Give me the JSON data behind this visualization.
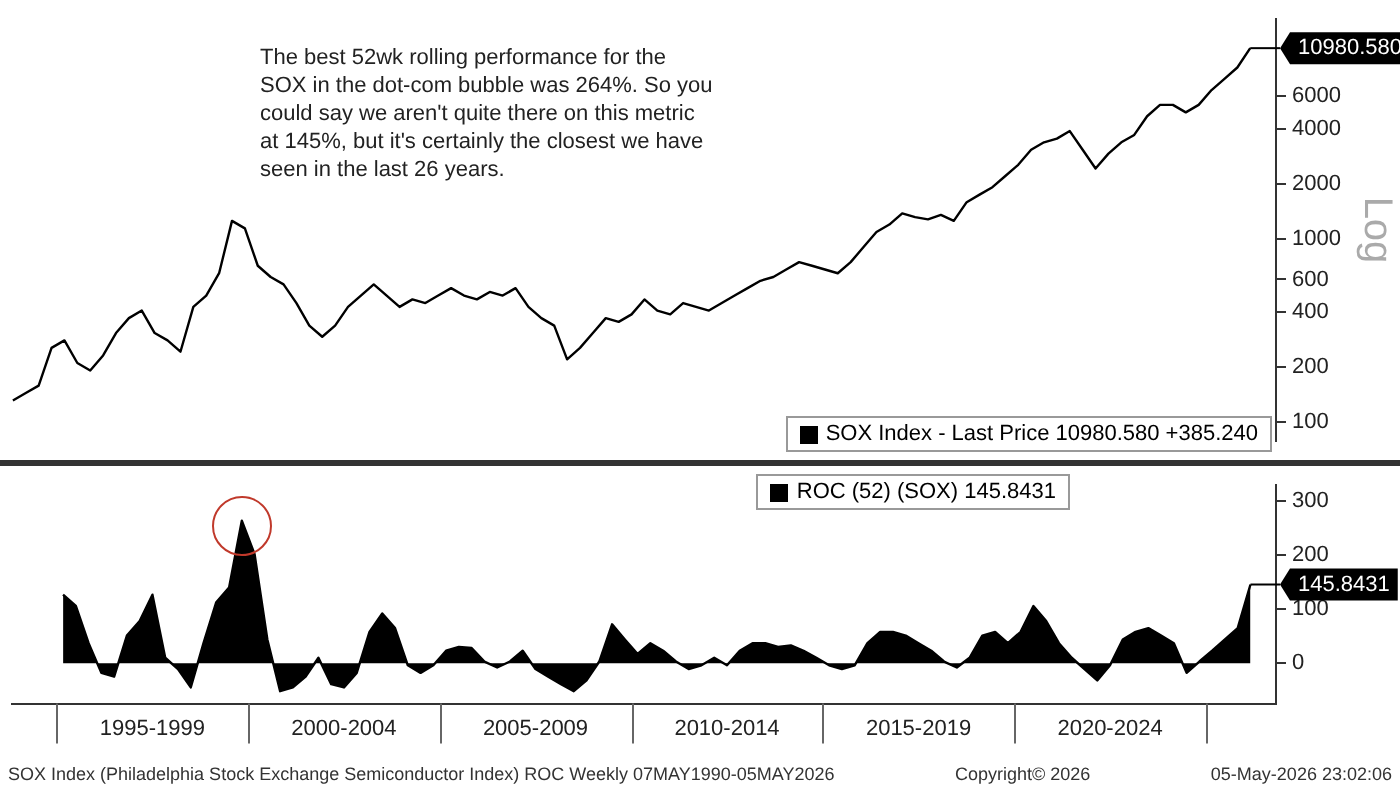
{
  "chart_data": [
    {
      "type": "line",
      "annotations": [
        "The best 52wk rolling performance for the SOX in the dot-com bubble was 264%. So you could say we aren't quite there on this metric at 145%, but it's certainly the closest we have seen in the last 26 years."
      ],
      "categories": [
        null,
        null,
        null,
        null,
        null,
        null,
        null,
        null,
        null,
        null,
        null,
        null,
        null,
        null,
        null,
        null,
        null,
        null,
        null,
        null,
        null,
        null,
        null,
        null,
        null,
        null,
        null,
        null,
        null,
        null,
        null,
        null,
        null,
        null,
        null,
        null,
        null,
        null,
        null,
        null,
        null,
        null,
        null,
        null,
        null,
        null,
        null,
        null,
        null,
        null,
        null,
        null,
        null,
        null,
        null,
        null,
        null,
        null,
        null,
        null,
        null,
        null,
        null,
        null,
        null,
        null,
        null,
        null,
        null,
        null,
        null,
        null,
        null,
        null,
        null,
        null,
        null,
        null,
        null,
        null,
        null,
        null,
        null,
        null,
        null,
        null,
        null,
        null,
        null,
        null,
        null,
        null,
        null,
        null,
        null,
        null,
        null,
        null,
        null,
        null
      ],
      "series": [
        {
          "name": "SOX Index - Last Price 10980.580 +385.240",
          "color": "#000000",
          "values": [
            null,
            131,
            144,
            158,
            254,
            279,
            210,
            191,
            231,
            306,
            369,
            406,
            306,
            279,
            242,
            425,
            490,
            649,
            1253,
            1140,
            713,
            619,
            564,
            446,
            336,
            292,
            336,
            425,
            490,
            564,
            490,
            425,
            467,
            446,
            490,
            538,
            490,
            467,
            513,
            490,
            538,
            425,
            369,
            336,
            220,
            254,
            306,
            369,
            352,
            387,
            467,
            406,
            387,
            446,
            425,
            406,
            446,
            490,
            538,
            590,
            619,
            680,
            746,
            713,
            680,
            649,
            746,
            902,
            1089,
            1196,
            1377,
            1313,
            1277,
            1351,
            1253,
            1585,
            1742,
            1914,
            2203,
            2535,
            3062,
            3364,
            3524,
            3873,
            3062,
            2421,
            2917,
            3364,
            3690,
            4667,
            5382,
            5382,
            4897,
            5382,
            6486,
            7464,
            8610,
            10980.58,
            null,
            null
          ],
          "value_labels": [
            null,
            null,
            null,
            null,
            null,
            null,
            null,
            null,
            null,
            null,
            null,
            null,
            null,
            null,
            null,
            null,
            null,
            null,
            null,
            null,
            null,
            null,
            null,
            null,
            null,
            null,
            null,
            null,
            null,
            null,
            null,
            null,
            null,
            null,
            null,
            null,
            null,
            null,
            null,
            null,
            null,
            null,
            null,
            null,
            null,
            null,
            null,
            null,
            null,
            null,
            null,
            null,
            null,
            null,
            null,
            null,
            null,
            null,
            null,
            null,
            null,
            null,
            null,
            null,
            null,
            null,
            null,
            null,
            null,
            null,
            null,
            null,
            null,
            null,
            null,
            null,
            null,
            null,
            null,
            null,
            null,
            null,
            null,
            null,
            null,
            null,
            null,
            null,
            null,
            null,
            null,
            null,
            null,
            null,
            null,
            null,
            null,
            "10980.580",
            null,
            null
          ]
        }
      ],
      "ylim": [
        79,
        15800
      ],
      "yticks": [
        100,
        200,
        400,
        600,
        1000,
        2000,
        4000,
        6000
      ],
      "log": true,
      "ylabel": "Log",
      "legend": "bottom right",
      "tick_labels": "y"
    },
    {
      "type": "area",
      "annotations": [
        "SOX Index (Philadelphia Stock Exchange Semiconductor Index) ROC Weekly 07MAY1990-05MAY2026",
        "Copyright© 2026",
        "05-May-2026 23:02:06"
      ],
      "categories": [
        null,
        null,
        null,
        null,
        null,
        null,
        null,
        null,
        null,
        null,
        null,
        "1995-1999",
        null,
        null,
        null,
        null,
        null,
        null,
        null,
        null,
        null,
        null,
        null,
        null,
        null,
        null,
        "2000-2004",
        null,
        null,
        null,
        null,
        null,
        null,
        null,
        null,
        null,
        null,
        null,
        null,
        null,
        null,
        "2005-2009",
        null,
        null,
        null,
        null,
        null,
        null,
        null,
        null,
        null,
        null,
        null,
        null,
        null,
        null,
        "2010-2014",
        null,
        null,
        null,
        null,
        null,
        null,
        null,
        null,
        null,
        null,
        null,
        null,
        null,
        null,
        "2015-2019",
        null,
        null,
        null,
        null,
        null,
        null,
        null,
        null,
        null,
        null,
        null,
        null,
        null,
        null,
        "2020-2024",
        null,
        null,
        null,
        null,
        null,
        null,
        null,
        null,
        null,
        null,
        null,
        null,
        null
      ],
      "series": [
        {
          "name": "ROC (52) (SOX) 145.8431",
          "color": "#000000",
          "values": [
            null,
            null,
            null,
            null,
            127,
            106,
            37,
            -18,
            -25,
            51,
            78,
            127,
            10,
            -11,
            -45,
            37,
            113,
            140,
            264,
            202,
            44,
            -52,
            -45,
            -25,
            10,
            -39,
            -45,
            -18,
            58,
            92,
            65,
            -4,
            -18,
            -4,
            23,
            30,
            28,
            3,
            -8,
            3,
            23,
            -11,
            -25,
            -39,
            -52,
            -32,
            3,
            72,
            44,
            17,
            37,
            23,
            3,
            -11,
            -4,
            10,
            -4,
            23,
            37,
            37,
            30,
            33,
            23,
            10,
            -4,
            -11,
            -4,
            37,
            58,
            58,
            51,
            37,
            23,
            3,
            -8,
            10,
            51,
            58,
            37,
            58,
            106,
            78,
            37,
            10,
            -11,
            -32,
            -4,
            44,
            58,
            65,
            51,
            37,
            -18,
            3,
            23,
            44,
            65,
            145.8431,
            null,
            null
          ],
          "value_labels": [
            null,
            null,
            null,
            null,
            null,
            null,
            null,
            null,
            null,
            null,
            null,
            null,
            null,
            null,
            null,
            null,
            null,
            null,
            null,
            null,
            null,
            null,
            null,
            null,
            null,
            null,
            null,
            null,
            null,
            null,
            null,
            null,
            null,
            null,
            null,
            null,
            null,
            null,
            null,
            null,
            null,
            null,
            null,
            null,
            null,
            null,
            null,
            null,
            null,
            null,
            null,
            null,
            null,
            null,
            null,
            null,
            null,
            null,
            null,
            null,
            null,
            null,
            null,
            null,
            null,
            null,
            null,
            null,
            null,
            null,
            null,
            null,
            null,
            null,
            null,
            null,
            null,
            null,
            null,
            null,
            null,
            null,
            null,
            null,
            null,
            null,
            null,
            null,
            null,
            null,
            null,
            null,
            null,
            null,
            null,
            null,
            null,
            "145.8431",
            null,
            null
          ]
        }
      ],
      "ylim": [
        -75,
        330
      ],
      "yticks": [
        0,
        100,
        200,
        300
      ],
      "legend": "top right"
    }
  ]
}
